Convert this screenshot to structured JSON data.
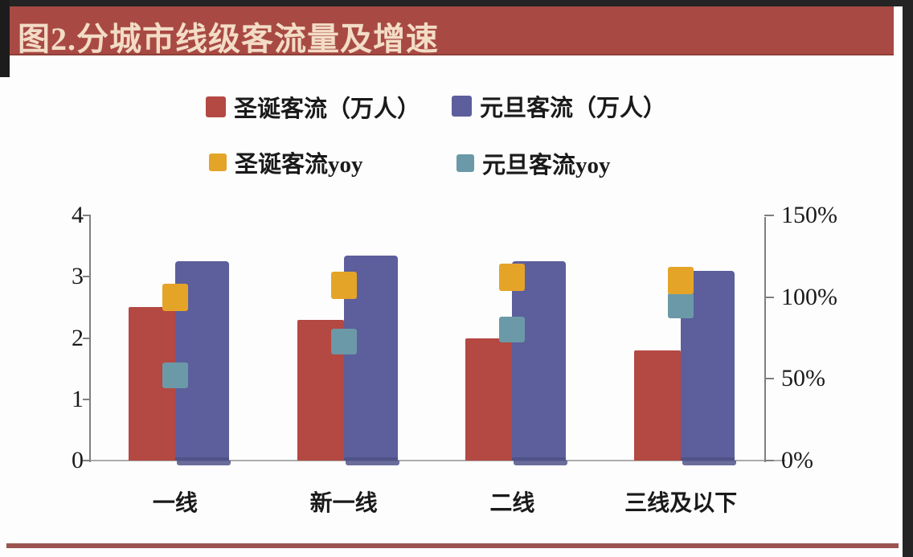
{
  "page": {
    "title": "图2.分城市线级客流量及增速"
  },
  "legend": {
    "items": [
      {
        "label": "圣诞客流（万人）",
        "color": "#b44843",
        "series": "christmas-flow"
      },
      {
        "label": "元旦客流（万人）",
        "color": "#5c5f9b",
        "series": "newyear-flow"
      },
      {
        "label": "圣诞客流yoy",
        "color": "#e4a428",
        "series": "christmas-yoy"
      },
      {
        "label": "元旦客流yoy",
        "color": "#6b99a8",
        "series": "newyear-yoy"
      }
    ]
  },
  "chart_data": {
    "type": "bar",
    "title": "图2.分城市线级客流量及增速",
    "categories": [
      "一线",
      "新一线",
      "二线",
      "三线及以下"
    ],
    "series": [
      {
        "name": "圣诞客流（万人）",
        "kind": "bar",
        "axis": "left",
        "color": "#b44843",
        "values": [
          2.5,
          2.3,
          2.0,
          1.8
        ]
      },
      {
        "name": "元旦客流（万人）",
        "kind": "bar",
        "axis": "left",
        "color": "#5c5f9b",
        "shadow_color": "#50538a",
        "values": [
          3.25,
          3.35,
          3.25,
          3.1
        ]
      },
      {
        "name": "圣诞客流yoy",
        "kind": "point",
        "axis": "right",
        "color": "#e4a428",
        "values_percent": [
          100,
          107,
          112,
          110
        ]
      },
      {
        "name": "元旦客流yoy",
        "kind": "point",
        "axis": "right",
        "color": "#6b99a8",
        "values_percent": [
          52,
          73,
          80,
          95
        ]
      }
    ],
    "left_axis": {
      "min": 0,
      "max": 4,
      "ticks": [
        4,
        3,
        2,
        1,
        0
      ]
    },
    "right_axis": {
      "min": 0,
      "max": 150,
      "ticks": [
        150,
        100,
        50,
        0
      ],
      "tick_labels": [
        "150%",
        "100%",
        "50%",
        "0%"
      ]
    },
    "grid": false,
    "legend_position": "top"
  }
}
